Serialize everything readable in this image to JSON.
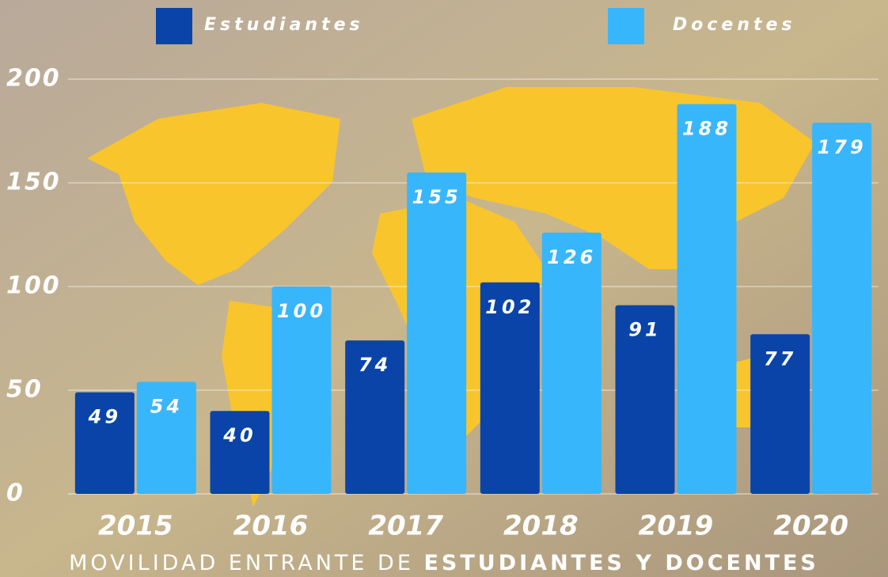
{
  "chart_data": {
    "type": "bar",
    "title": [
      "MOVILIDAD ENTRANTE DE",
      "ESTUDIANTES Y DOCENTES"
    ],
    "categories": [
      "2015",
      "2016",
      "2017",
      "2018",
      "2019",
      "2020"
    ],
    "series": [
      {
        "name": "Estudiantes",
        "color": "#0a44a8",
        "values": [
          49,
          40,
          74,
          102,
          91,
          77
        ]
      },
      {
        "name": "Docentes",
        "color": "#38b6fb",
        "values": [
          54,
          100,
          155,
          126,
          188,
          179
        ]
      }
    ],
    "ylim": [
      0,
      200
    ],
    "yticks": [
      0,
      50,
      100,
      150,
      200
    ],
    "grid": true,
    "legend": "top"
  }
}
